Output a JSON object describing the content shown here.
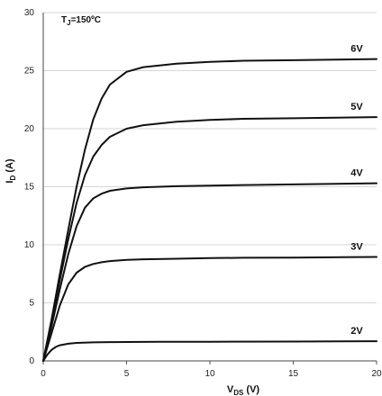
{
  "chart_data": {
    "type": "line",
    "annotation_main": "T",
    "annotation_sub": "J",
    "annotation_rest": "=150ºC",
    "xlabel_main": "V",
    "xlabel_sub": "DS",
    "xlabel_rest": " (V)",
    "ylabel_main": "I",
    "ylabel_sub": "D",
    "ylabel_rest": " (A)",
    "xlim": [
      0,
      20
    ],
    "ylim": [
      0,
      30
    ],
    "x_ticks": [
      0,
      5,
      10,
      15,
      20
    ],
    "y_ticks": [
      0,
      5,
      10,
      15,
      20,
      25,
      30
    ],
    "grid": "horizontal",
    "line_color": "#111111",
    "grid_color": "#d6d6d6",
    "series": [
      {
        "name": "6V",
        "x": [
          0,
          0.5,
          1,
          1.5,
          2,
          2.5,
          3,
          3.5,
          4,
          5,
          6,
          8,
          10,
          12,
          15,
          20
        ],
        "values": [
          0,
          3.6,
          7.5,
          11.3,
          15,
          18.2,
          20.8,
          22.6,
          23.8,
          24.9,
          25.3,
          25.6,
          25.75,
          25.85,
          25.9,
          26
        ]
      },
      {
        "name": "5V",
        "x": [
          0,
          0.5,
          1,
          1.5,
          2,
          2.5,
          3,
          3.5,
          4,
          5,
          6,
          8,
          10,
          12,
          15,
          20
        ],
        "values": [
          0,
          3.4,
          7,
          10.5,
          13.6,
          16,
          17.6,
          18.6,
          19.3,
          20,
          20.3,
          20.6,
          20.75,
          20.85,
          20.9,
          21
        ]
      },
      {
        "name": "4V",
        "x": [
          0,
          0.5,
          1,
          1.5,
          2,
          2.5,
          3,
          3.5,
          4,
          5,
          6,
          8,
          10,
          12,
          15,
          20
        ],
        "values": [
          0,
          3,
          6.2,
          9.2,
          11.6,
          13.2,
          14,
          14.4,
          14.65,
          14.85,
          14.95,
          15.05,
          15.1,
          15.15,
          15.2,
          15.3
        ]
      },
      {
        "name": "3V",
        "x": [
          0,
          0.5,
          1,
          1.5,
          2,
          2.5,
          3,
          3.5,
          4,
          5,
          6,
          8,
          10,
          12,
          15,
          20
        ],
        "values": [
          0,
          2.4,
          4.8,
          6.6,
          7.6,
          8.1,
          8.35,
          8.5,
          8.6,
          8.7,
          8.75,
          8.8,
          8.85,
          8.88,
          8.9,
          8.95
        ]
      },
      {
        "name": "2V",
        "x": [
          0,
          0.25,
          0.5,
          0.75,
          1,
          1.5,
          2,
          3,
          4,
          5,
          7,
          10,
          15,
          20
        ],
        "values": [
          0,
          0.55,
          0.95,
          1.2,
          1.35,
          1.48,
          1.55,
          1.6,
          1.62,
          1.63,
          1.64,
          1.65,
          1.67,
          1.7
        ]
      }
    ]
  }
}
